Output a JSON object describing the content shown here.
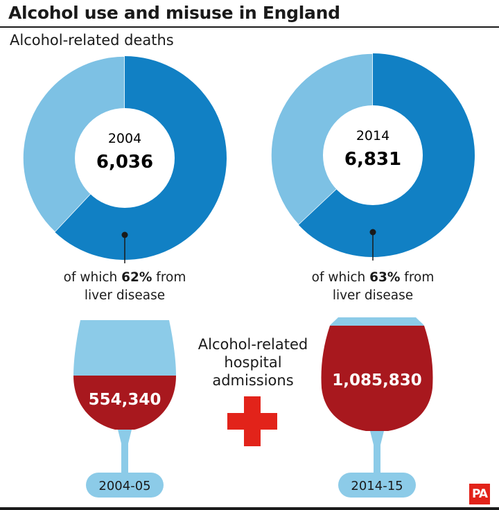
{
  "title": "Alcohol use and misuse in England",
  "chart_data": [
    {
      "type": "pie",
      "title": "Alcohol-related deaths",
      "charts": [
        {
          "year": "2004",
          "total": "6,036",
          "liver_share": 62,
          "caption_prefix": "of which ",
          "caption_pct": "62%",
          "caption_suffix": " from",
          "caption_line2": "liver disease"
        },
        {
          "year": "2014",
          "total": "6,831",
          "liver_share": 63,
          "caption_prefix": "of which ",
          "caption_pct": "63%",
          "caption_suffix": " from",
          "caption_line2": "liver disease"
        }
      ],
      "colors": {
        "liver": "#1180c4",
        "other": "#7dc1e4"
      }
    },
    {
      "type": "bar",
      "title_lines": [
        "Alcohol-related",
        "hospital",
        "admissions"
      ],
      "categories": [
        "2004-05",
        "2014-15"
      ],
      "values": [
        554340,
        1085830
      ],
      "value_labels": [
        "554,340",
        "1,085,830"
      ],
      "colors": {
        "wine": "#a8181e",
        "glass": "#8ccbe8",
        "cross": "#e2231a"
      }
    }
  ],
  "logo": "PA"
}
